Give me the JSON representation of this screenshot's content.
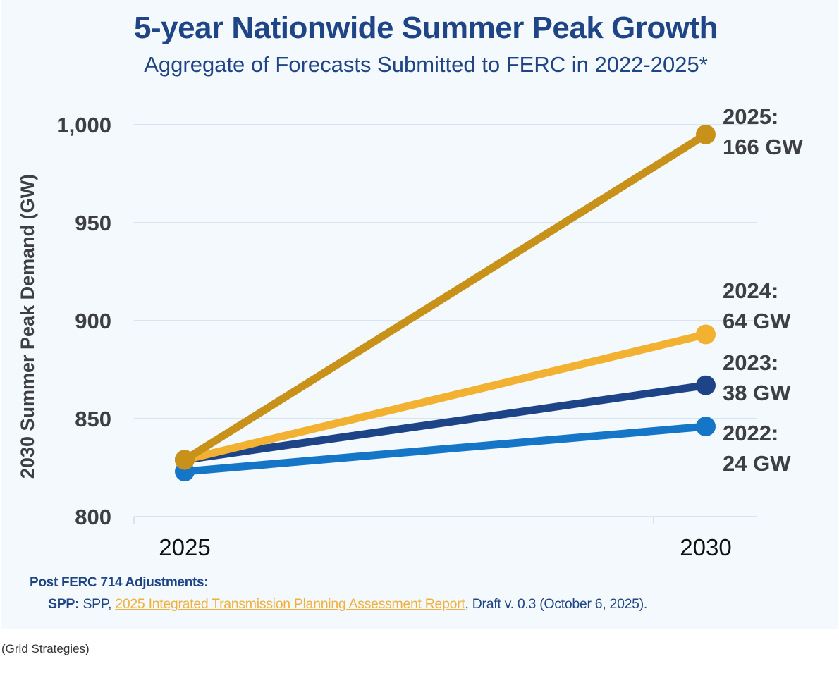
{
  "chart_data": {
    "type": "line",
    "title": "5-year Nationwide Summer Peak Growth",
    "subtitle": "Aggregate of Forecasts Submitted to FERC in 2022-2025*",
    "xlabel": "",
    "ylabel": "2030 Summer Peak Demand (GW)",
    "x": [
      "2025",
      "2030"
    ],
    "ylim": [
      800,
      1000
    ],
    "yticks": [
      800,
      850,
      900,
      950,
      1000
    ],
    "ytick_labels": [
      "800",
      "850",
      "900",
      "950",
      "1,000"
    ],
    "grid": true,
    "series": [
      {
        "name": "2022",
        "color": "#1576c8",
        "values": [
          823,
          846
        ],
        "label_line1": "2022:",
        "label_line2": "24 GW"
      },
      {
        "name": "2023",
        "color": "#1e4488",
        "values": [
          829,
          867
        ],
        "label_line1": "2023:",
        "label_line2": "38 GW"
      },
      {
        "name": "2024",
        "color": "#f2b130",
        "values": [
          829,
          893
        ],
        "label_line1": "2024:",
        "label_line2": "64 GW"
      },
      {
        "name": "2025",
        "color": "#c8921a",
        "values": [
          829,
          995
        ],
        "label_line1": "2025:",
        "label_line2": "166 GW"
      }
    ]
  },
  "notes": {
    "heading": "Post FERC 714 Adjustments:",
    "source_prefix": "SPP:",
    "source_org": " SPP, ",
    "source_link": "2025 Integrated Transmission Planning Assessment Report",
    "source_suffix": ", Draft v. 0.3 (October 6, 2025)."
  },
  "caption": "(Grid Strategies)"
}
